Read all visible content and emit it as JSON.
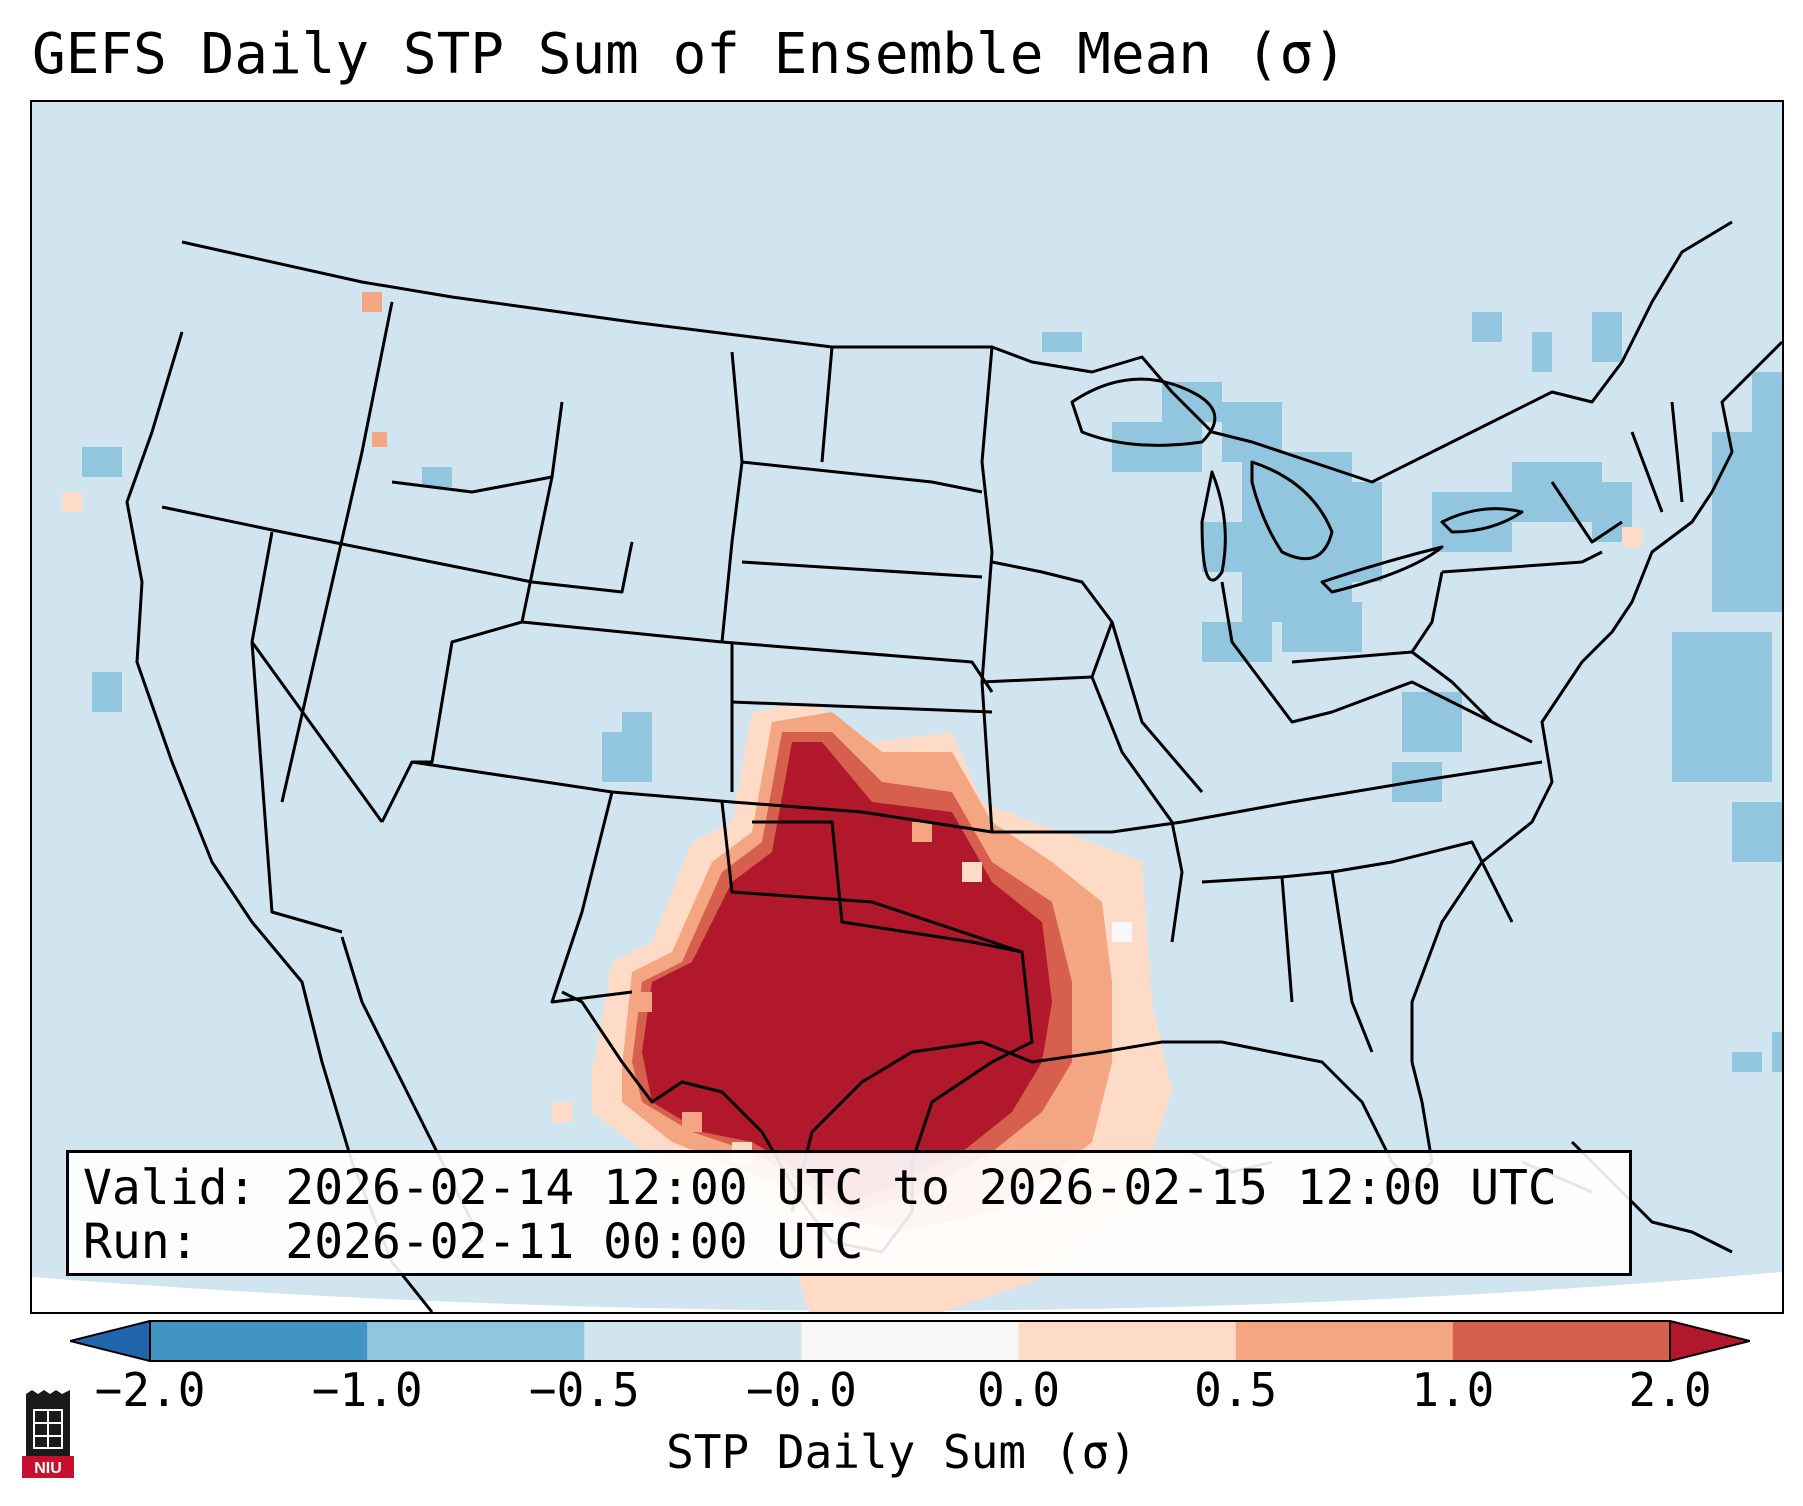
{
  "title": "GEFS Daily STP Sum of Ensemble Mean (σ)",
  "info": {
    "valid_line": "Valid: 2026-02-14 12:00 UTC to 2026-02-15 12:00 UTC",
    "run_line": "Run:   2026-02-11 00:00 UTC"
  },
  "colorbar": {
    "label": "STP Daily Sum (σ)",
    "ticks": [
      "−2.0",
      "−1.0",
      "−0.5",
      "−0.0",
      "0.0",
      "0.5",
      "1.0",
      "2.0"
    ],
    "bins": [
      {
        "range": "<-2.0",
        "color": "#2166ac"
      },
      {
        "range": "-2.0 to -1.0",
        "color": "#4393c3"
      },
      {
        "range": "-1.0 to -0.5",
        "color": "#92c5de"
      },
      {
        "range": "-0.5 to -0.0",
        "color": "#d1e5f0"
      },
      {
        "range": "-0.0 to 0.0",
        "color": "#f7f7f7"
      },
      {
        "range": "0.0 to 0.5",
        "color": "#fddbc7"
      },
      {
        "range": "0.5 to 1.0",
        "color": "#f4a582"
      },
      {
        "range": "1.0 to 2.0",
        "color": "#d6604d"
      },
      {
        "range": ">2.0",
        "color": "#b2182b"
      }
    ]
  },
  "logo": {
    "text": "NIU",
    "color": "#c8102e"
  },
  "icons": {
    "logo": "niu-tower-icon"
  }
}
